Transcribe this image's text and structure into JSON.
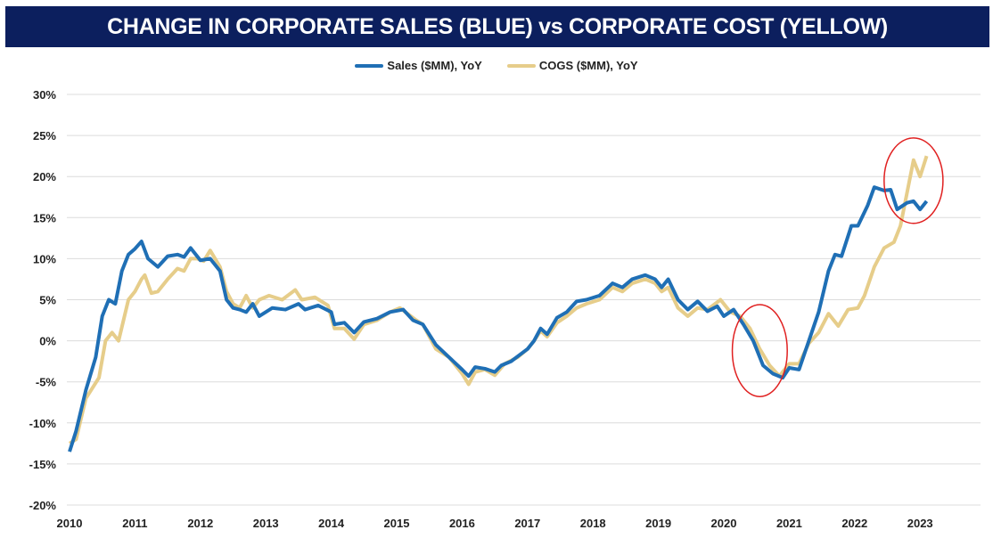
{
  "chart_data": {
    "type": "line",
    "title": "CHANGE IN CORPORATE SALES (BLUE) vs CORPORATE COST (YELLOW)",
    "xlabel": "",
    "ylabel": "",
    "xlim": [
      2010,
      2024
    ],
    "ylim": [
      -20,
      30
    ],
    "x_ticks": [
      "2010",
      "2011",
      "2012",
      "2013",
      "2014",
      "2015",
      "2016",
      "2017",
      "2018",
      "2019",
      "2020",
      "2021",
      "2022",
      "2023"
    ],
    "y_ticks": [
      "30%",
      "25%",
      "20%",
      "15%",
      "10%",
      "5%",
      "0%",
      "-5%",
      "-10%",
      "-15%",
      "-20%"
    ],
    "y_tick_values": [
      30,
      25,
      20,
      15,
      10,
      5,
      0,
      -5,
      -10,
      -15,
      -20
    ],
    "grid": "horizontal",
    "legend_position": "top-center",
    "series": [
      {
        "name": "Sales ($MM), YoY",
        "color": "#1f6fb5",
        "points": [
          [
            2010.0,
            -13.5
          ],
          [
            2010.1,
            -11
          ],
          [
            2010.25,
            -6
          ],
          [
            2010.4,
            -2
          ],
          [
            2010.5,
            3
          ],
          [
            2010.6,
            5
          ],
          [
            2010.7,
            4.5
          ],
          [
            2010.8,
            8.5
          ],
          [
            2010.9,
            10.5
          ],
          [
            2011.0,
            11.2
          ],
          [
            2011.1,
            12.1
          ],
          [
            2011.2,
            10
          ],
          [
            2011.35,
            9
          ],
          [
            2011.5,
            10.3
          ],
          [
            2011.65,
            10.5
          ],
          [
            2011.75,
            10.2
          ],
          [
            2011.85,
            11.3
          ],
          [
            2012.0,
            9.8
          ],
          [
            2012.15,
            10
          ],
          [
            2012.3,
            8.5
          ],
          [
            2012.4,
            5
          ],
          [
            2012.5,
            4
          ],
          [
            2012.6,
            3.8
          ],
          [
            2012.7,
            3.5
          ],
          [
            2012.8,
            4.5
          ],
          [
            2012.9,
            3
          ],
          [
            2013.1,
            4
          ],
          [
            2013.3,
            3.8
          ],
          [
            2013.5,
            4.5
          ],
          [
            2013.6,
            3.8
          ],
          [
            2013.8,
            4.3
          ],
          [
            2014.0,
            3.5
          ],
          [
            2014.05,
            2
          ],
          [
            2014.2,
            2.2
          ],
          [
            2014.35,
            1
          ],
          [
            2014.5,
            2.3
          ],
          [
            2014.7,
            2.7
          ],
          [
            2014.9,
            3.5
          ],
          [
            2015.1,
            3.8
          ],
          [
            2015.25,
            2.5
          ],
          [
            2015.4,
            2
          ],
          [
            2015.6,
            -0.5
          ],
          [
            2015.8,
            -2
          ],
          [
            2016.0,
            -3.5
          ],
          [
            2016.1,
            -4.3
          ],
          [
            2016.2,
            -3.2
          ],
          [
            2016.35,
            -3.4
          ],
          [
            2016.5,
            -3.8
          ],
          [
            2016.6,
            -3
          ],
          [
            2016.75,
            -2.5
          ],
          [
            2017.0,
            -1
          ],
          [
            2017.1,
            0
          ],
          [
            2017.2,
            1.5
          ],
          [
            2017.3,
            0.8
          ],
          [
            2017.45,
            2.8
          ],
          [
            2017.6,
            3.5
          ],
          [
            2017.75,
            4.8
          ],
          [
            2017.9,
            5
          ],
          [
            2018.1,
            5.5
          ],
          [
            2018.3,
            7
          ],
          [
            2018.45,
            6.5
          ],
          [
            2018.6,
            7.5
          ],
          [
            2018.8,
            8
          ],
          [
            2018.95,
            7.5
          ],
          [
            2019.05,
            6.5
          ],
          [
            2019.15,
            7.5
          ],
          [
            2019.3,
            5
          ],
          [
            2019.45,
            3.8
          ],
          [
            2019.6,
            4.8
          ],
          [
            2019.75,
            3.6
          ],
          [
            2019.9,
            4.2
          ],
          [
            2020.0,
            3
          ],
          [
            2020.15,
            3.8
          ],
          [
            2020.3,
            2
          ],
          [
            2020.45,
            0
          ],
          [
            2020.6,
            -3
          ],
          [
            2020.75,
            -4
          ],
          [
            2020.9,
            -4.5
          ],
          [
            2021.0,
            -3.3
          ],
          [
            2021.15,
            -3.5
          ],
          [
            2021.3,
            0
          ],
          [
            2021.45,
            3.5
          ],
          [
            2021.6,
            8.5
          ],
          [
            2021.7,
            10.5
          ],
          [
            2021.8,
            10.3
          ],
          [
            2021.95,
            14
          ],
          [
            2022.05,
            14
          ],
          [
            2022.2,
            16.5
          ],
          [
            2022.3,
            18.7
          ],
          [
            2022.45,
            18.3
          ],
          [
            2022.55,
            18.4
          ],
          [
            2022.65,
            16
          ],
          [
            2022.8,
            16.8
          ],
          [
            2022.9,
            17
          ],
          [
            2023.0,
            16
          ],
          [
            2023.1,
            17
          ]
        ]
      },
      {
        "name": "COGS ($MM), YoY",
        "color": "#e6cd8a",
        "points": [
          [
            2010.0,
            -12.5
          ],
          [
            2010.1,
            -12
          ],
          [
            2010.25,
            -7
          ],
          [
            2010.45,
            -4.5
          ],
          [
            2010.55,
            0
          ],
          [
            2010.65,
            1
          ],
          [
            2010.75,
            0
          ],
          [
            2010.9,
            5
          ],
          [
            2011.0,
            6
          ],
          [
            2011.1,
            7.5
          ],
          [
            2011.15,
            8
          ],
          [
            2011.25,
            5.8
          ],
          [
            2011.35,
            6
          ],
          [
            2011.5,
            7.5
          ],
          [
            2011.65,
            8.8
          ],
          [
            2011.75,
            8.5
          ],
          [
            2011.85,
            10
          ],
          [
            2011.95,
            10
          ],
          [
            2012.05,
            9.7
          ],
          [
            2012.15,
            11
          ],
          [
            2012.3,
            9
          ],
          [
            2012.4,
            6
          ],
          [
            2012.5,
            4.5
          ],
          [
            2012.6,
            4
          ],
          [
            2012.7,
            5.5
          ],
          [
            2012.8,
            4
          ],
          [
            2012.9,
            5
          ],
          [
            2013.05,
            5.5
          ],
          [
            2013.25,
            5
          ],
          [
            2013.45,
            6.2
          ],
          [
            2013.55,
            5
          ],
          [
            2013.75,
            5.3
          ],
          [
            2013.95,
            4.3
          ],
          [
            2014.05,
            1.5
          ],
          [
            2014.2,
            1.5
          ],
          [
            2014.35,
            0.2
          ],
          [
            2014.5,
            2
          ],
          [
            2014.7,
            2.5
          ],
          [
            2014.9,
            3.5
          ],
          [
            2015.05,
            4
          ],
          [
            2015.3,
            2.5
          ],
          [
            2015.4,
            2
          ],
          [
            2015.6,
            -1
          ],
          [
            2015.8,
            -2
          ],
          [
            2016.0,
            -4
          ],
          [
            2016.1,
            -5.3
          ],
          [
            2016.2,
            -3.8
          ],
          [
            2016.35,
            -3.5
          ],
          [
            2016.5,
            -4.2
          ],
          [
            2016.65,
            -2.8
          ],
          [
            2016.85,
            -2
          ],
          [
            2017.0,
            -1
          ],
          [
            2017.1,
            0
          ],
          [
            2017.2,
            1.2
          ],
          [
            2017.3,
            0.5
          ],
          [
            2017.45,
            2.2
          ],
          [
            2017.6,
            3
          ],
          [
            2017.75,
            4
          ],
          [
            2017.9,
            4.5
          ],
          [
            2018.1,
            5
          ],
          [
            2018.3,
            6.5
          ],
          [
            2018.45,
            6
          ],
          [
            2018.6,
            7
          ],
          [
            2018.8,
            7.5
          ],
          [
            2018.95,
            7
          ],
          [
            2019.05,
            6
          ],
          [
            2019.15,
            6.5
          ],
          [
            2019.3,
            4
          ],
          [
            2019.45,
            3
          ],
          [
            2019.6,
            4
          ],
          [
            2019.75,
            3.8
          ],
          [
            2019.95,
            5
          ],
          [
            2020.1,
            3.5
          ],
          [
            2020.25,
            3
          ],
          [
            2020.4,
            1.5
          ],
          [
            2020.55,
            -1
          ],
          [
            2020.7,
            -3
          ],
          [
            2020.85,
            -4.3
          ],
          [
            2021.0,
            -2.8
          ],
          [
            2021.15,
            -2.8
          ],
          [
            2021.3,
            -0.3
          ],
          [
            2021.45,
            1
          ],
          [
            2021.6,
            3.3
          ],
          [
            2021.75,
            1.8
          ],
          [
            2021.9,
            3.8
          ],
          [
            2022.05,
            4
          ],
          [
            2022.15,
            5.5
          ],
          [
            2022.3,
            9
          ],
          [
            2022.45,
            11.3
          ],
          [
            2022.6,
            12
          ],
          [
            2022.7,
            14
          ],
          [
            2022.8,
            18
          ],
          [
            2022.9,
            22
          ],
          [
            2023.0,
            20
          ],
          [
            2023.1,
            22.5
          ]
        ]
      }
    ],
    "annotations": [
      {
        "type": "ellipse",
        "color": "#e02020",
        "center": [
          2020.55,
          -1.2
        ],
        "rx_years": 0.42,
        "ry_pct": 5.6
      },
      {
        "type": "ellipse",
        "color": "#e02020",
        "center": [
          2022.9,
          19.5
        ],
        "rx_years": 0.45,
        "ry_pct": 5.2
      }
    ]
  }
}
